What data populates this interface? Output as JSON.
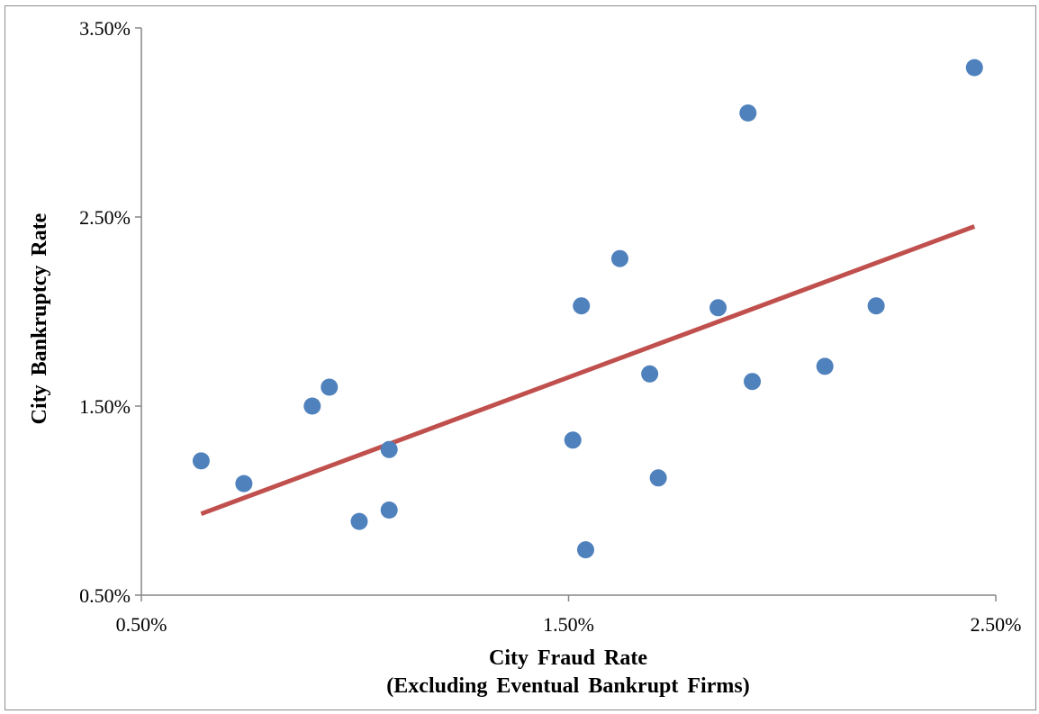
{
  "chart_data": {
    "type": "scatter",
    "title": "",
    "xlabel": "City Fraud Rate",
    "xlabel_line2": "(Excluding Eventual Bankrupt Firms)",
    "ylabel": "City Bankruptcy Rate",
    "xlim": [
      0.5,
      2.5
    ],
    "ylim": [
      0.5,
      3.5
    ],
    "x_ticks": [
      0.5,
      1.5,
      2.5
    ],
    "y_ticks": [
      0.5,
      1.5,
      2.5,
      3.5
    ],
    "x_tick_labels": [
      "0.50%",
      "1.50%",
      "2.50%"
    ],
    "y_tick_labels": [
      "0.50%",
      "1.50%",
      "2.50%",
      "3.50%"
    ],
    "grid": false,
    "legend": "none",
    "colors": {
      "points": "#4f81bd",
      "trendline": "#c0504d",
      "axis": "#868686"
    },
    "series": [
      {
        "points": [
          {
            "x": 0.64,
            "y": 1.21
          },
          {
            "x": 0.74,
            "y": 1.09
          },
          {
            "x": 0.9,
            "y": 1.5
          },
          {
            "x": 0.94,
            "y": 1.6
          },
          {
            "x": 1.01,
            "y": 0.89
          },
          {
            "x": 1.08,
            "y": 0.95
          },
          {
            "x": 1.08,
            "y": 1.27
          },
          {
            "x": 1.51,
            "y": 1.32
          },
          {
            "x": 1.53,
            "y": 2.03
          },
          {
            "x": 1.54,
            "y": 0.74
          },
          {
            "x": 1.62,
            "y": 2.28
          },
          {
            "x": 1.69,
            "y": 1.67
          },
          {
            "x": 1.71,
            "y": 1.12
          },
          {
            "x": 1.85,
            "y": 2.02
          },
          {
            "x": 1.92,
            "y": 3.05
          },
          {
            "x": 1.93,
            "y": 1.63
          },
          {
            "x": 2.1,
            "y": 1.71
          },
          {
            "x": 2.22,
            "y": 2.03
          },
          {
            "x": 2.45,
            "y": 3.29
          }
        ]
      }
    ],
    "trendline": {
      "type": "linear",
      "x": [
        0.64,
        2.45
      ],
      "y": [
        0.93,
        2.45
      ]
    }
  }
}
